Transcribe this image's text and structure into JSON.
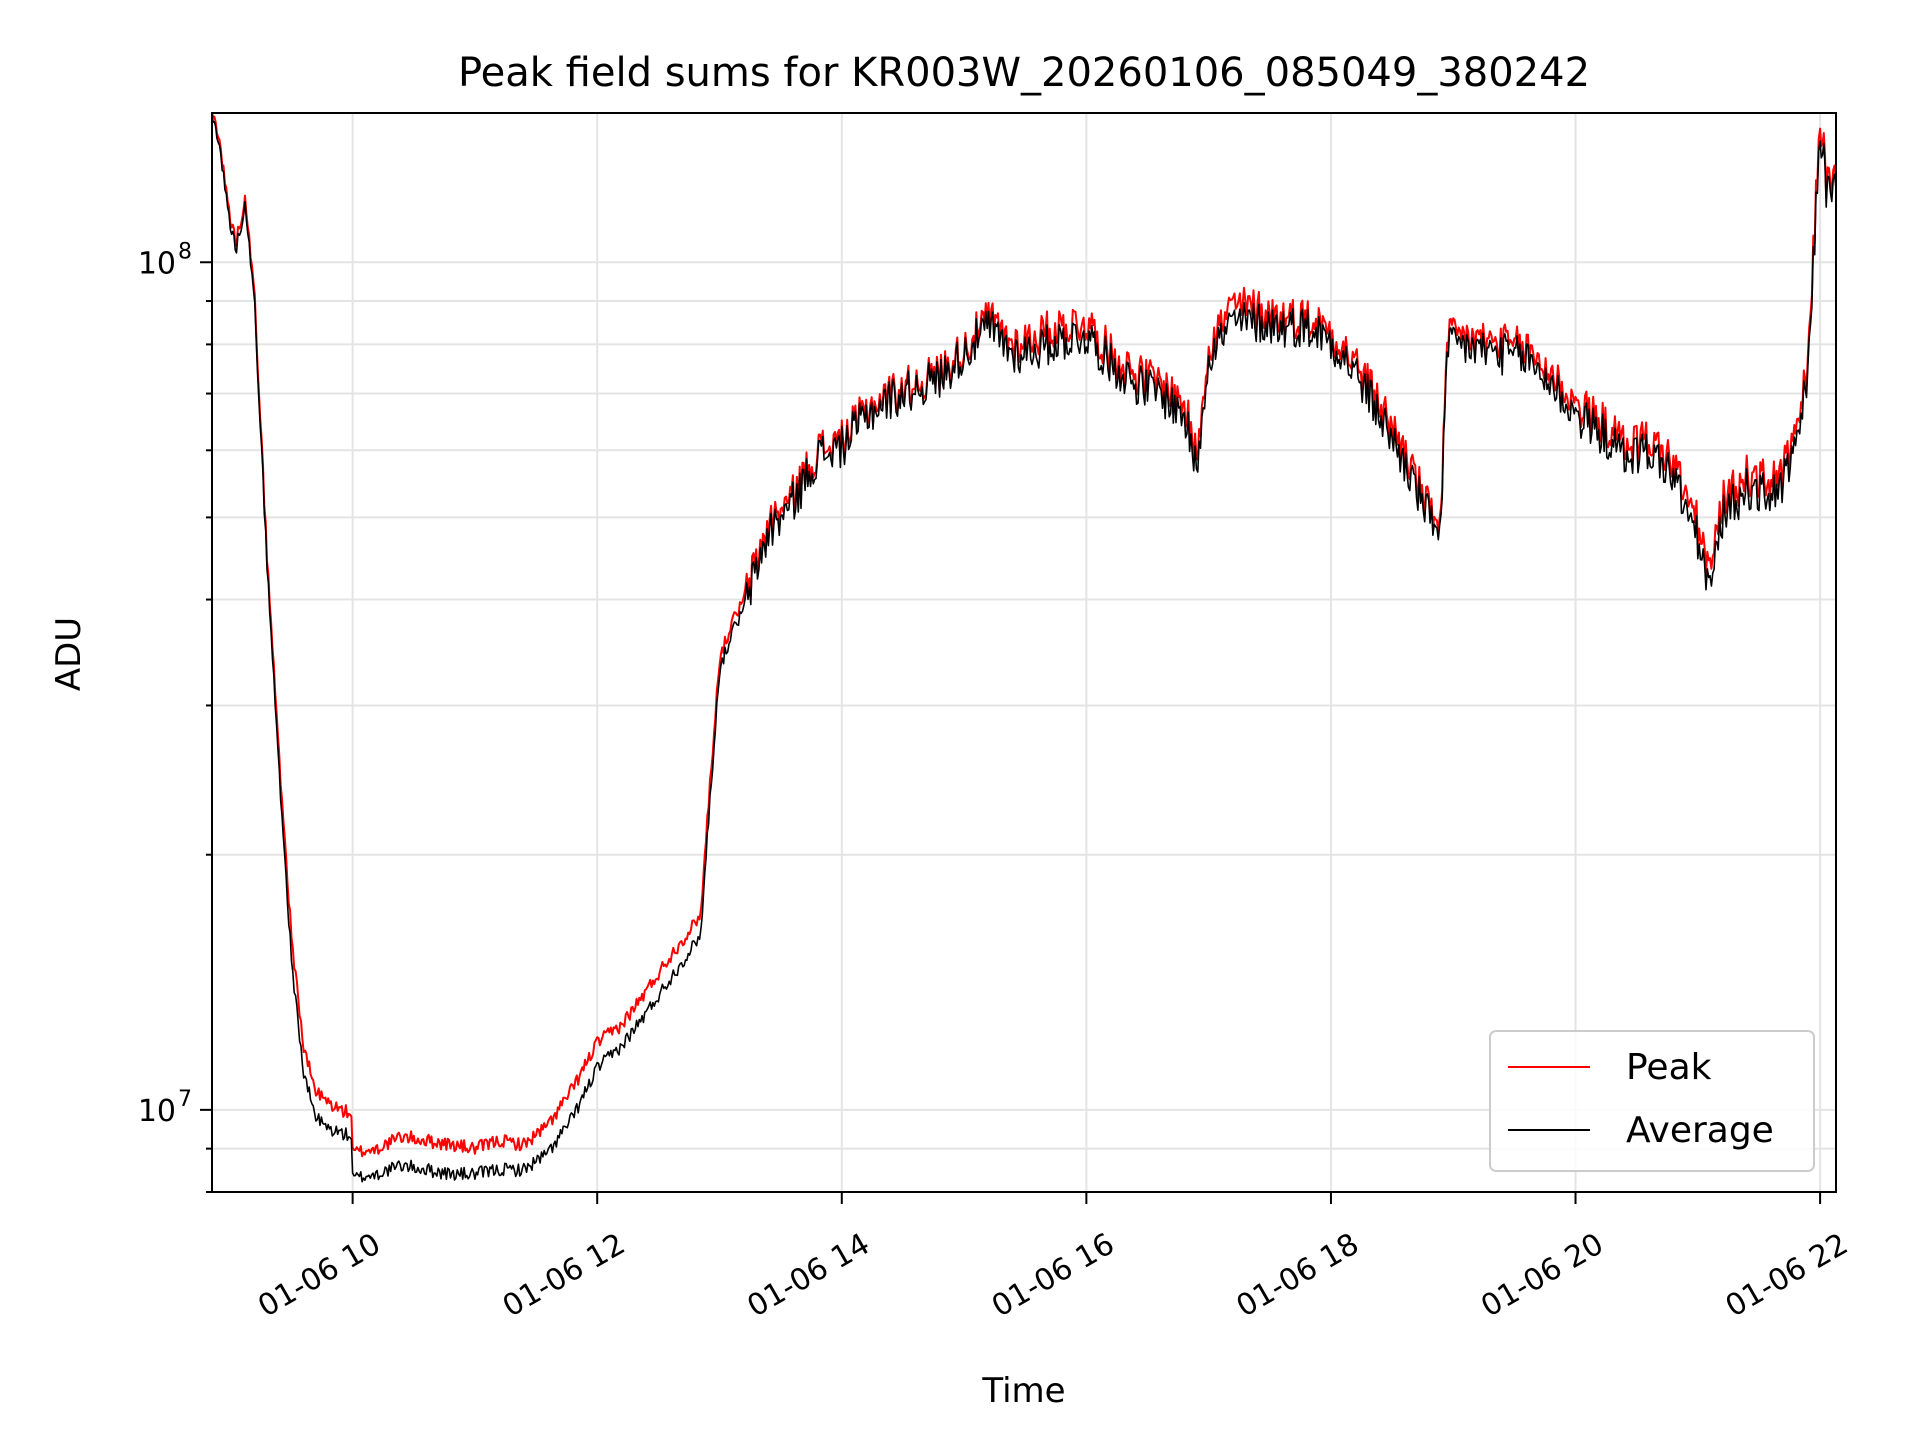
{
  "chart_data": {
    "type": "line",
    "title": "Peak field sums for KR003W_20260106_085049_380242",
    "xlabel": "Time",
    "ylabel": "ADU",
    "x_unit": "hour of day, 2026-01-06",
    "xlim": [
      8.85,
      22.13
    ],
    "ylim": [
      8000000.0,
      150000000.0
    ],
    "yscale": "log",
    "grid": true,
    "legend_position": "lower-right",
    "x_ticks": [
      {
        "value": 10,
        "label": "01-06 10"
      },
      {
        "value": 12,
        "label": "01-06 12"
      },
      {
        "value": 14,
        "label": "01-06 14"
      },
      {
        "value": 16,
        "label": "01-06 16"
      },
      {
        "value": 18,
        "label": "01-06 18"
      },
      {
        "value": 20,
        "label": "01-06 20"
      },
      {
        "value": 22,
        "label": "01-06 22"
      }
    ],
    "y_major_ticks": [
      {
        "value": 10000000,
        "base": "10",
        "exp": "7"
      },
      {
        "value": 100000000,
        "base": "10",
        "exp": "8"
      }
    ],
    "series": [
      {
        "name": "Peak",
        "color": "#ff0000",
        "x": [
          8.85,
          8.9,
          9.0,
          9.05,
          9.1,
          9.12,
          9.2,
          9.3,
          9.4,
          9.5,
          9.6,
          9.7,
          9.8,
          9.9,
          9.99,
          10.0,
          10.2,
          10.4,
          10.6,
          10.8,
          11.0,
          11.2,
          11.4,
          11.6,
          11.8,
          12.0,
          12.2,
          12.4,
          12.6,
          12.8,
          12.85,
          12.9,
          13.0,
          13.1,
          13.2,
          13.4,
          13.6,
          13.8,
          14.0,
          14.2,
          14.4,
          14.6,
          14.8,
          15.0,
          15.2,
          15.4,
          15.6,
          15.8,
          16.0,
          16.2,
          16.4,
          16.6,
          16.8,
          16.9,
          17.0,
          17.2,
          17.4,
          17.6,
          17.8,
          18.0,
          18.2,
          18.4,
          18.6,
          18.8,
          18.9,
          18.95,
          19.0,
          19.2,
          19.4,
          19.6,
          19.8,
          20.0,
          20.2,
          20.4,
          20.6,
          20.8,
          21.0,
          21.1,
          21.2,
          21.4,
          21.6,
          21.7,
          21.8,
          21.9,
          22.0,
          22.05,
          22.13
        ],
        "y": [
          150000000,
          143000000,
          112000000,
          106000000,
          115000000,
          121000000,
          90000000,
          45000000,
          26000000,
          16000000,
          11800000,
          10500000,
          10200000,
          10000000,
          9900000,
          8900000,
          9000000,
          9300000,
          9200000,
          9100000,
          9000000,
          9200000,
          9100000,
          9600000,
          10600000,
          12000000,
          12600000,
          13800000,
          15200000,
          16600000,
          17200000,
          22000000,
          34000000,
          37500000,
          40000000,
          49000000,
          53000000,
          60000000,
          61500000,
          67000000,
          70000000,
          72000000,
          74000000,
          79000000,
          86000000,
          80000000,
          82000000,
          84000000,
          85000000,
          78000000,
          74000000,
          72000000,
          68000000,
          59000000,
          80000000,
          89000000,
          88000000,
          86000000,
          86000000,
          83000000,
          76000000,
          68000000,
          60000000,
          51000000,
          50000000,
          80000000,
          82000000,
          81000000,
          80000000,
          79000000,
          74000000,
          68000000,
          65000000,
          61000000,
          62000000,
          58000000,
          49000000,
          43000000,
          52000000,
          56000000,
          55000000,
          57000000,
          62000000,
          75000000,
          150000000,
          125000000,
          125000000
        ]
      },
      {
        "name": "Average",
        "color": "#000000",
        "x": [
          8.85,
          8.9,
          9.0,
          9.05,
          9.1,
          9.12,
          9.2,
          9.3,
          9.4,
          9.5,
          9.6,
          9.7,
          9.8,
          9.9,
          9.99,
          10.0,
          10.2,
          10.4,
          10.6,
          10.8,
          11.0,
          11.2,
          11.4,
          11.6,
          11.8,
          12.0,
          12.2,
          12.4,
          12.6,
          12.8,
          12.85,
          12.9,
          13.0,
          13.1,
          13.2,
          13.4,
          13.6,
          13.8,
          14.0,
          14.2,
          14.4,
          14.6,
          14.8,
          15.0,
          15.2,
          15.4,
          15.6,
          15.8,
          16.0,
          16.2,
          16.4,
          16.6,
          16.8,
          16.9,
          17.0,
          17.2,
          17.4,
          17.6,
          17.8,
          18.0,
          18.2,
          18.4,
          18.6,
          18.8,
          18.9,
          18.95,
          19.0,
          19.2,
          19.4,
          19.6,
          19.8,
          20.0,
          20.2,
          20.4,
          20.6,
          20.8,
          21.0,
          21.1,
          21.2,
          21.4,
          21.6,
          21.7,
          21.8,
          21.9,
          22.0,
          22.05,
          22.13
        ],
        "y": [
          148000000,
          141000000,
          110000000,
          104000000,
          113000000,
          119000000,
          88000000,
          44000000,
          25000000,
          15000000,
          11000000,
          9800000,
          9500000,
          9400000,
          9300000,
          8300000,
          8400000,
          8600000,
          8500000,
          8400000,
          8400000,
          8500000,
          8500000,
          8900000,
          9800000,
          11200000,
          11900000,
          13000000,
          14300000,
          15700000,
          16300000,
          21000000,
          33000000,
          36500000,
          39000000,
          48000000,
          52000000,
          59000000,
          60500000,
          66000000,
          69000000,
          71000000,
          73000000,
          78000000,
          84000000,
          78000000,
          79000000,
          81000000,
          82000000,
          76000000,
          72000000,
          70000000,
          66000000,
          57000000,
          78000000,
          85000000,
          85000000,
          84000000,
          84000000,
          81000000,
          74000000,
          66000000,
          58000000,
          50000000,
          49000000,
          78000000,
          80000000,
          79000000,
          78000000,
          77000000,
          72000000,
          66000000,
          63000000,
          59000000,
          60000000,
          56000000,
          47000000,
          41000000,
          50000000,
          54000000,
          53000000,
          55000000,
          60000000,
          73000000,
          145000000,
          122000000,
          122000000
        ]
      }
    ]
  }
}
